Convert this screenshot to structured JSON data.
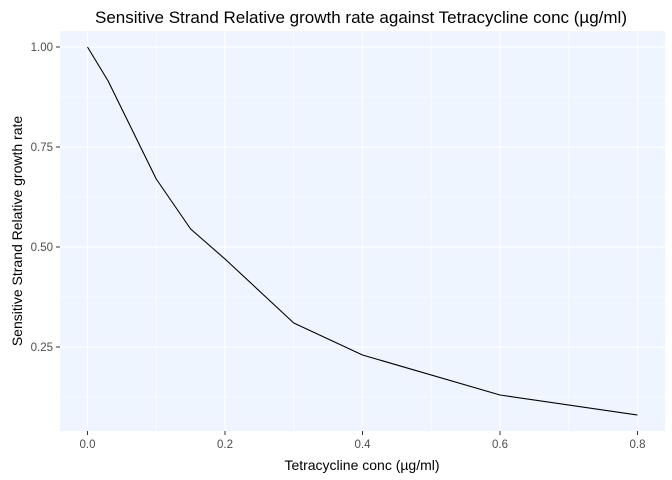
{
  "chart_data": {
    "type": "line",
    "title": "Sensitive Strand Relative growth rate against Tetracycline conc (µg/ml)",
    "xlabel": "Tetracycline conc (µg/ml)",
    "ylabel": "Sensitive Strand Relative growth rate",
    "x_ticks": [
      "0.0",
      "0.2",
      "0.4",
      "0.6",
      "0.8"
    ],
    "y_ticks": [
      "0.25",
      "0.50",
      "0.75",
      "1.00"
    ],
    "xlim": [
      -0.04,
      0.84
    ],
    "ylim": [
      0.04,
      1.04
    ],
    "grid": true,
    "legend": "none",
    "colors": {
      "panel": "#eef5ff",
      "grid": "#ffffff",
      "line": "#000000"
    },
    "series": [
      {
        "x": [
          0.0,
          0.03,
          0.1,
          0.15,
          0.2,
          0.3,
          0.4,
          0.6,
          0.8
        ],
        "y": [
          1.0,
          0.915,
          0.67,
          0.545,
          0.47,
          0.31,
          0.23,
          0.13,
          0.08
        ]
      }
    ]
  }
}
